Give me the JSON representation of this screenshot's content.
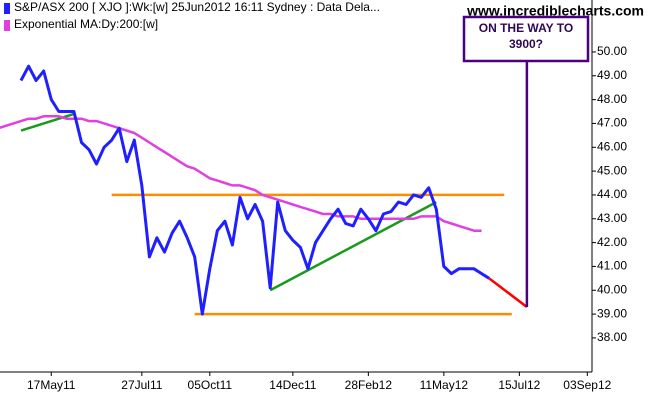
{
  "chart_data": {
    "type": "line",
    "source": "www.incrediblecharts.com",
    "annotation": [
      "ON THE WAY TO",
      "3900?"
    ],
    "categories": [
      null,
      null,
      null,
      null,
      null,
      null,
      null,
      "17May11",
      null,
      null,
      null,
      null,
      null,
      null,
      null,
      null,
      null,
      null,
      null,
      "27Jul11",
      null,
      null,
      null,
      null,
      null,
      null,
      null,
      null,
      "05Oct11",
      null,
      null,
      null,
      null,
      null,
      null,
      null,
      null,
      null,
      null,
      "14Dec11",
      null,
      null,
      null,
      null,
      null,
      null,
      null,
      null,
      null,
      "28Feb12",
      null,
      null,
      null,
      null,
      null,
      null,
      null,
      null,
      null,
      "11May12",
      null,
      null,
      null,
      null,
      null,
      null,
      null,
      null,
      null,
      "15Jul12",
      null,
      null,
      null,
      null,
      null,
      null,
      null,
      null,
      "03Sep12"
    ],
    "series": [
      {
        "name": "S&P/ASX 200 [ XJO ]:Wk:[w]  25Jun2012 16:11 Sydney : Data Dela...",
        "color": "#1f1fff",
        "values": [
          null,
          null,
          null,
          48.8,
          49.4,
          48.8,
          49.2,
          48.0,
          47.5,
          47.5,
          47.5,
          46.2,
          45.9,
          45.3,
          46.0,
          46.3,
          46.8,
          45.4,
          46.3,
          44.4,
          41.4,
          42.2,
          41.6,
          42.4,
          42.9,
          42.2,
          41.4,
          39.0,
          40.9,
          42.5,
          42.9,
          41.9,
          43.9,
          43.0,
          43.6,
          42.9,
          40.1,
          43.7,
          42.5,
          42.1,
          41.8,
          40.9,
          42.0,
          42.5,
          43.0,
          43.4,
          42.8,
          42.7,
          43.4,
          43.0,
          42.5,
          43.2,
          43.3,
          43.7,
          43.6,
          44.0,
          43.9,
          44.3,
          43.4,
          41.0,
          40.7,
          40.9,
          40.9,
          40.9,
          40.7,
          40.5,
          null,
          null,
          null,
          null,
          null,
          null,
          null,
          null,
          null,
          null,
          null,
          null,
          null
        ]
      },
      {
        "name": "Exponential MA:Dy:200:[w]",
        "color": "#e040e0",
        "values": [
          46.8,
          46.9,
          47.0,
          47.1,
          47.2,
          47.2,
          47.3,
          47.3,
          47.3,
          47.2,
          47.2,
          47.2,
          47.1,
          47.1,
          47.0,
          46.9,
          46.8,
          46.7,
          46.6,
          46.4,
          46.2,
          46.0,
          45.8,
          45.6,
          45.4,
          45.2,
          45.1,
          44.9,
          44.7,
          44.6,
          44.5,
          44.4,
          44.4,
          44.3,
          44.2,
          44.0,
          43.9,
          43.8,
          43.7,
          43.6,
          43.5,
          43.4,
          43.3,
          43.2,
          43.2,
          43.1,
          43.1,
          43.1,
          43.0,
          43.0,
          43.0,
          43.0,
          43.0,
          43.0,
          43.0,
          43.0,
          43.1,
          43.1,
          43.1,
          42.9,
          42.8,
          42.7,
          42.6,
          42.5,
          42.5,
          null,
          null,
          null,
          null,
          null,
          null,
          null,
          null,
          null,
          null,
          null,
          null,
          null,
          null
        ]
      }
    ],
    "segments": [
      {
        "color": "#ff8c00",
        "x": [
          15,
          67
        ],
        "values": [
          44.0,
          44.0
        ]
      },
      {
        "color": "#ff8c00",
        "x": [
          26,
          68
        ],
        "values": [
          39.0,
          39.0
        ]
      },
      {
        "color": "#1a9a1a",
        "x": [
          3,
          10
        ],
        "values": [
          46.7,
          47.4
        ]
      },
      {
        "color": "#1a9a1a",
        "x": [
          36,
          58
        ],
        "values": [
          40.0,
          43.7
        ]
      },
      {
        "color": "#ff0000",
        "x": [
          65,
          70
        ],
        "values": [
          40.5,
          39.3
        ]
      }
    ],
    "ylim": [
      36.57,
      52.18
    ],
    "yticks": [
      {
        "value": 38,
        "label": "38.00"
      },
      {
        "value": 39,
        "label": "39.00"
      },
      {
        "value": 40,
        "label": "40.00"
      },
      {
        "value": 41,
        "label": "41.00"
      },
      {
        "value": 42,
        "label": "42.00"
      },
      {
        "value": 43,
        "label": "43.00"
      },
      {
        "value": 44,
        "label": "44.00"
      },
      {
        "value": 45,
        "label": "45.00"
      },
      {
        "value": 46,
        "label": "46.00"
      },
      {
        "value": 47,
        "label": "47.00"
      },
      {
        "value": 48,
        "label": "48.00"
      },
      {
        "value": 49,
        "label": "49.00"
      },
      {
        "value": 50,
        "label": "50.00"
      }
    ],
    "grid": false
  }
}
